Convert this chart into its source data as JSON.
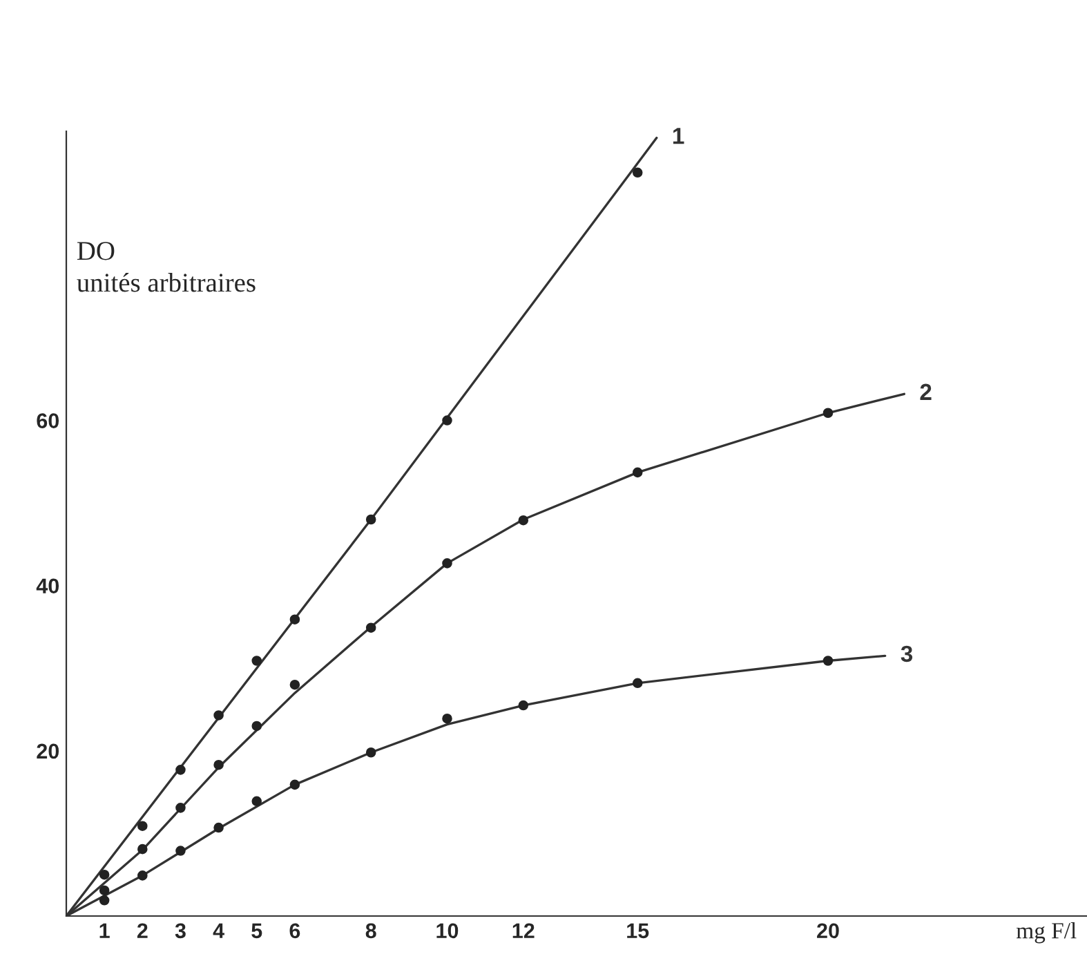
{
  "chart_data": {
    "type": "line",
    "xlabel": "mg F/l",
    "ylabel": "DO\nunités arbitraires",
    "xlim": [
      0,
      26.8
    ],
    "ylim": [
      0,
      95
    ],
    "xticks": [
      1,
      2,
      3,
      4,
      5,
      6,
      8,
      10,
      12,
      15,
      20
    ],
    "yticks": [
      20,
      40,
      60
    ],
    "grid": false,
    "legend": false,
    "series": [
      {
        "name": "1",
        "color": "#333333",
        "marker": "none",
        "line_style": "solid",
        "x": [
          0,
          8,
          15.5
        ],
        "values": [
          0,
          48,
          94.2
        ]
      },
      {
        "name": "2",
        "color": "#333333",
        "marker": "none",
        "line_style": "solid",
        "x": [
          0,
          2,
          4,
          6,
          8,
          10,
          12,
          15,
          20,
          22
        ],
        "values": [
          0,
          8,
          18,
          27,
          35,
          42.7,
          48,
          53.7,
          60.9,
          63.2
        ]
      },
      {
        "name": "3",
        "color": "#333333",
        "marker": "none",
        "line_style": "solid",
        "x": [
          0,
          2,
          4,
          6,
          8,
          10,
          12,
          15,
          20,
          21.5
        ],
        "values": [
          0,
          4.9,
          10.6,
          15.9,
          19.8,
          23.2,
          25.5,
          28.2,
          30.9,
          31.5
        ]
      },
      {
        "type": "scatter",
        "color": "#222222",
        "marker": "circle",
        "x": [
          1,
          2,
          3,
          4,
          5,
          6,
          8,
          10,
          15
        ],
        "values": [
          5.0,
          10.9,
          17.7,
          24.3,
          30.9,
          35.9,
          48.0,
          60.0,
          90.0
        ]
      },
      {
        "type": "scatter",
        "color": "#222222",
        "marker": "circle",
        "x": [
          1,
          2,
          3,
          4,
          5,
          6,
          8,
          10,
          12,
          15,
          20
        ],
        "values": [
          3.1,
          8.1,
          13.1,
          18.3,
          23.0,
          28.0,
          34.9,
          42.7,
          47.9,
          53.7,
          60.9
        ]
      },
      {
        "type": "scatter",
        "color": "#222222",
        "marker": "circle",
        "x": [
          1,
          2,
          3,
          4,
          5,
          6,
          8,
          10,
          12,
          15,
          20
        ],
        "values": [
          1.9,
          4.9,
          7.9,
          10.7,
          13.9,
          15.9,
          19.8,
          23.9,
          25.5,
          28.2,
          30.9
        ]
      }
    ]
  }
}
